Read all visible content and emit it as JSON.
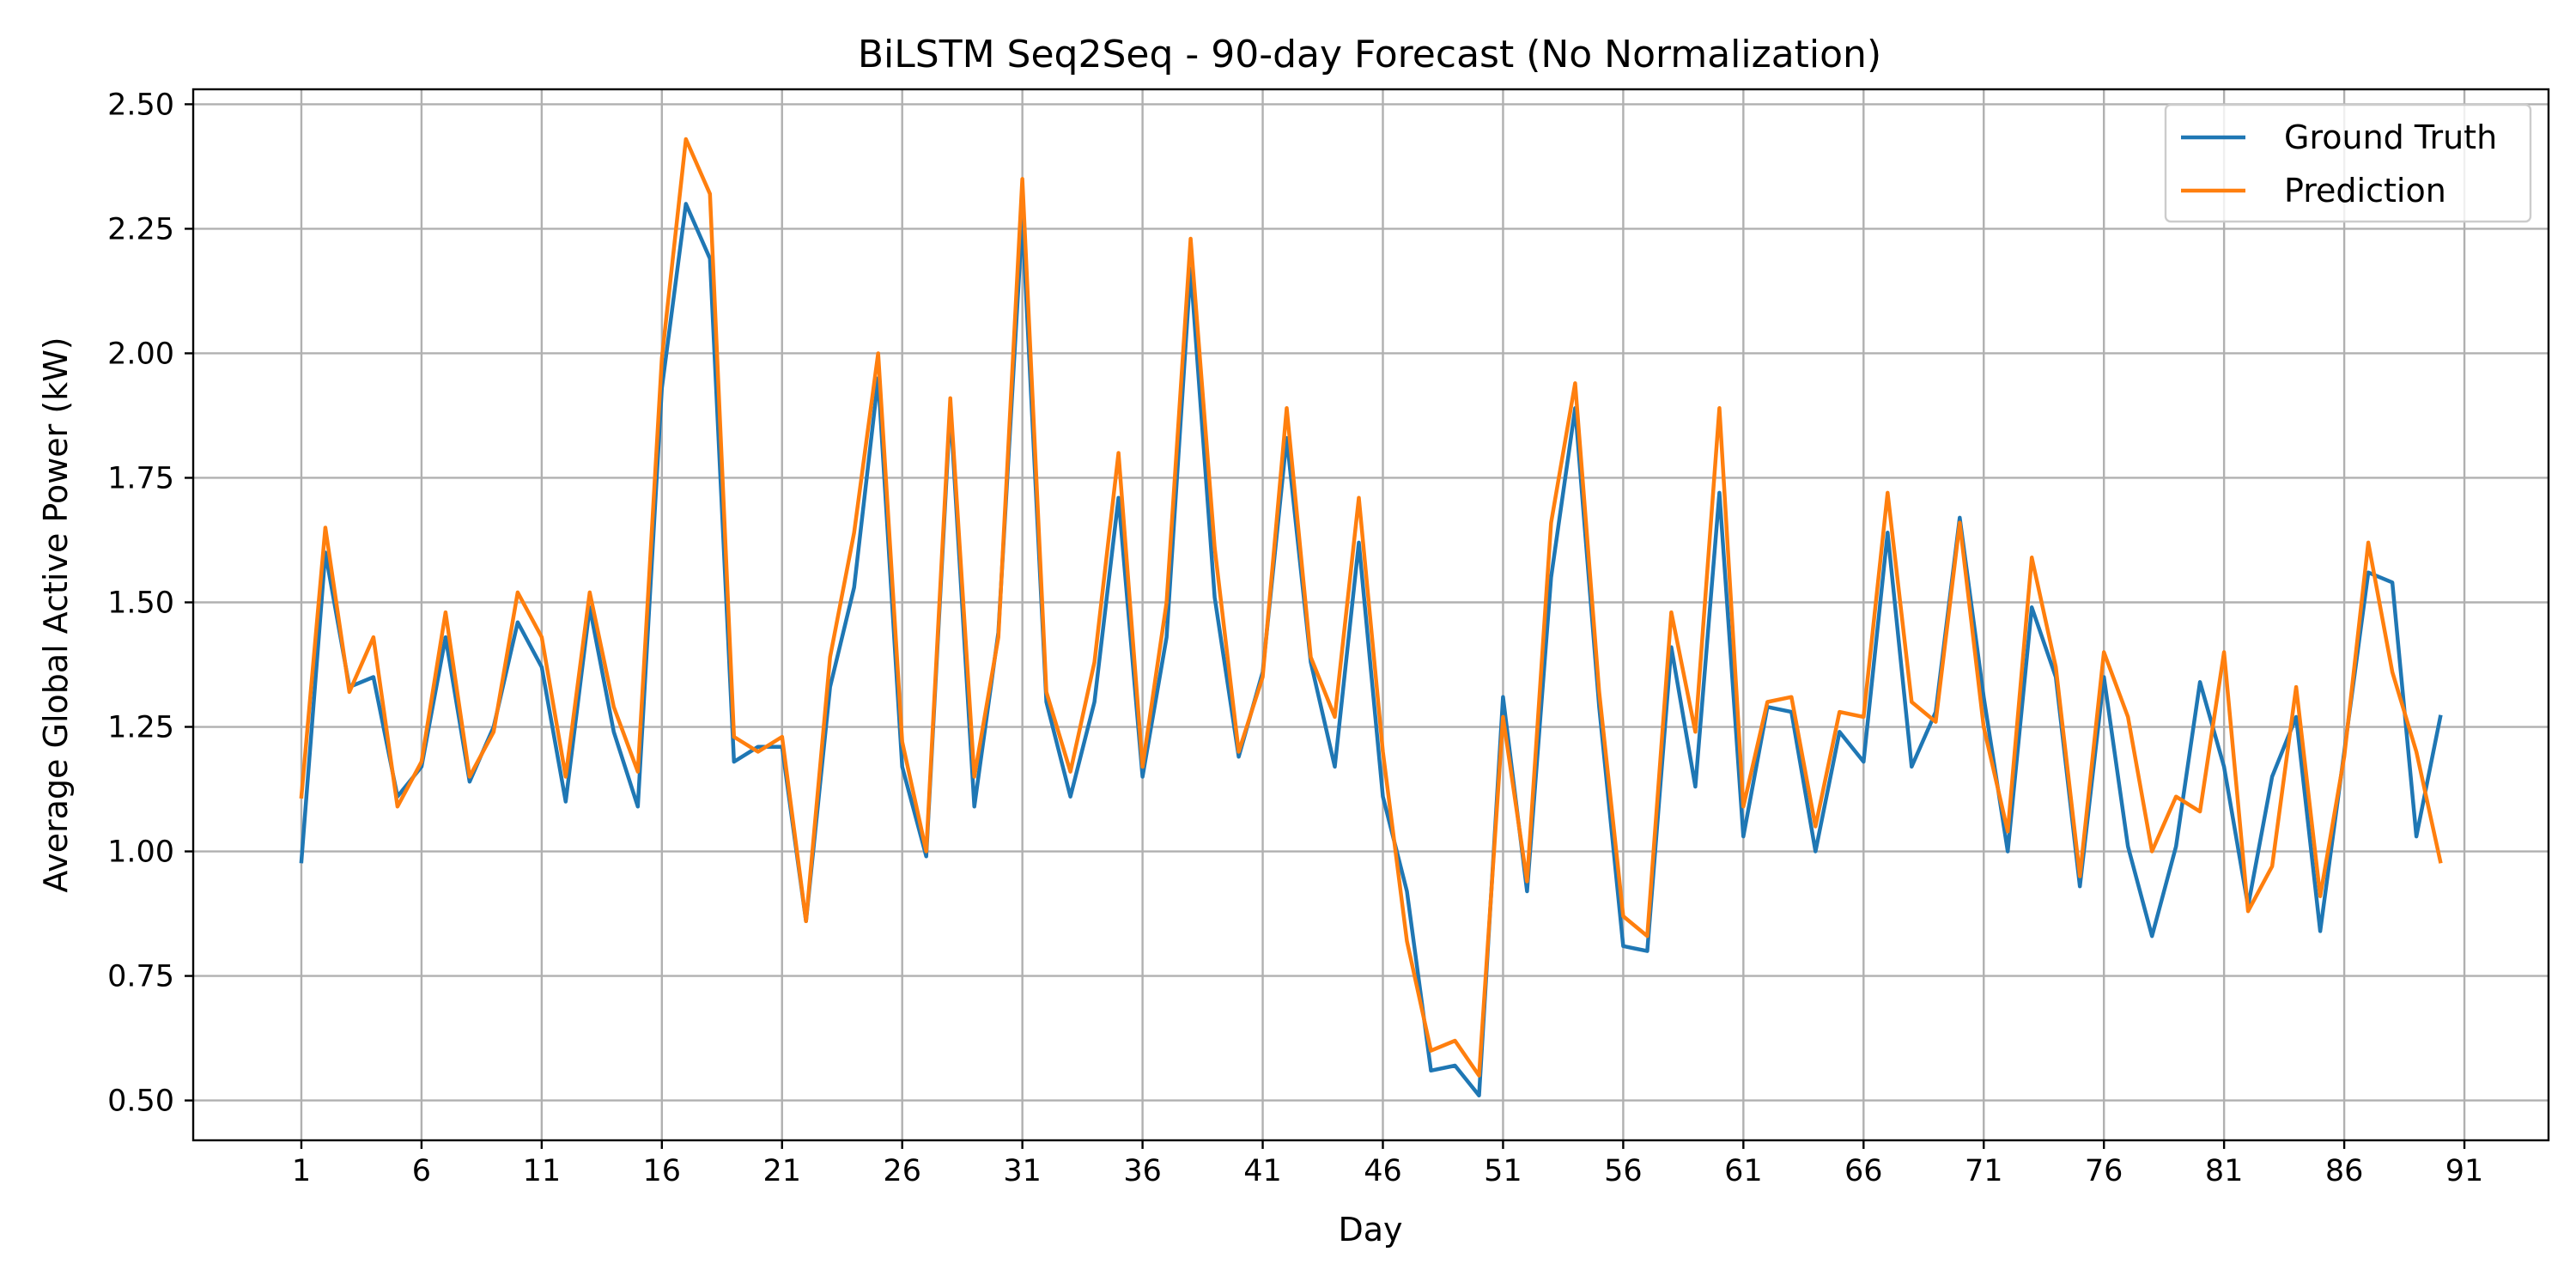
{
  "chart_data": {
    "type": "line",
    "title": "BiLSTM Seq2Seq - 90-day Forecast (No Normalization)",
    "xlabel": "Day",
    "ylabel": "Average Global Active Power (kW)",
    "xlim": [
      -3.5,
      94.5
    ],
    "ylim": [
      0.42,
      2.53
    ],
    "xticks": [
      1,
      6,
      11,
      16,
      21,
      26,
      31,
      36,
      41,
      46,
      51,
      56,
      61,
      66,
      71,
      76,
      81,
      86,
      91
    ],
    "xtick_labels": [
      "1",
      "6",
      "11",
      "16",
      "21",
      "26",
      "31",
      "36",
      "41",
      "46",
      "51",
      "56",
      "61",
      "66",
      "71",
      "76",
      "81",
      "86",
      "91"
    ],
    "yticks": [
      0.5,
      0.75,
      1.0,
      1.25,
      1.5,
      1.75,
      2.0,
      2.25,
      2.5
    ],
    "ytick_labels": [
      "0.50",
      "0.75",
      "1.00",
      "1.25",
      "1.50",
      "1.75",
      "2.00",
      "2.25",
      "2.50"
    ],
    "grid": true,
    "legend_position": "upper right",
    "x": [
      1,
      2,
      3,
      4,
      5,
      6,
      7,
      8,
      9,
      10,
      11,
      12,
      13,
      14,
      15,
      16,
      17,
      18,
      19,
      20,
      21,
      22,
      23,
      24,
      25,
      26,
      27,
      28,
      29,
      30,
      31,
      32,
      33,
      34,
      35,
      36,
      37,
      38,
      39,
      40,
      41,
      42,
      43,
      44,
      45,
      46,
      47,
      48,
      49,
      50,
      51,
      52,
      53,
      54,
      55,
      56,
      57,
      58,
      59,
      60,
      61,
      62,
      63,
      64,
      65,
      66,
      67,
      68,
      69,
      70,
      71,
      72,
      73,
      74,
      75,
      76,
      77,
      78,
      79,
      80,
      81,
      82,
      83,
      84,
      85,
      86,
      87,
      88,
      89,
      90
    ],
    "series": [
      {
        "name": "Ground Truth",
        "color": "#1f77b4",
        "values": [
          0.98,
          1.6,
          1.33,
          1.35,
          1.11,
          1.17,
          1.43,
          1.14,
          1.25,
          1.46,
          1.37,
          1.1,
          1.49,
          1.24,
          1.09,
          1.93,
          2.3,
          2.19,
          1.18,
          1.21,
          1.21,
          0.86,
          1.33,
          1.53,
          1.95,
          1.17,
          0.99,
          1.89,
          1.09,
          1.44,
          2.27,
          1.3,
          1.11,
          1.3,
          1.71,
          1.15,
          1.43,
          2.17,
          1.51,
          1.19,
          1.36,
          1.83,
          1.38,
          1.17,
          1.62,
          1.11,
          0.92,
          0.56,
          0.57,
          0.51,
          1.31,
          0.92,
          1.55,
          1.89,
          1.29,
          0.81,
          0.8,
          1.41,
          1.13,
          1.72,
          1.03,
          1.29,
          1.28,
          1.0,
          1.24,
          1.18,
          1.64,
          1.17,
          1.28,
          1.67,
          1.31,
          1.0,
          1.49,
          1.35,
          0.93,
          1.35,
          1.01,
          0.83,
          1.01,
          1.34,
          1.17,
          0.89,
          1.15,
          1.27,
          0.84,
          1.2,
          1.56,
          1.54,
          1.03,
          1.27
        ]
      },
      {
        "name": "Prediction",
        "color": "#ff7f0e",
        "values": [
          1.11,
          1.65,
          1.32,
          1.43,
          1.09,
          1.18,
          1.48,
          1.15,
          1.24,
          1.52,
          1.43,
          1.15,
          1.52,
          1.29,
          1.16,
          1.99,
          2.43,
          2.32,
          1.23,
          1.2,
          1.23,
          0.86,
          1.39,
          1.64,
          2.0,
          1.22,
          1.0,
          1.91,
          1.15,
          1.43,
          2.35,
          1.32,
          1.16,
          1.38,
          1.8,
          1.17,
          1.5,
          2.23,
          1.61,
          1.2,
          1.35,
          1.89,
          1.39,
          1.27,
          1.71,
          1.2,
          0.82,
          0.6,
          0.62,
          0.55,
          1.27,
          0.94,
          1.66,
          1.94,
          1.32,
          0.87,
          0.83,
          1.48,
          1.24,
          1.89,
          1.09,
          1.3,
          1.31,
          1.05,
          1.28,
          1.27,
          1.72,
          1.3,
          1.26,
          1.66,
          1.25,
          1.04,
          1.59,
          1.37,
          0.95,
          1.4,
          1.27,
          1.0,
          1.11,
          1.08,
          1.4,
          0.88,
          0.97,
          1.33,
          0.91,
          1.19,
          1.62,
          1.36,
          1.2,
          0.98
        ]
      }
    ]
  }
}
